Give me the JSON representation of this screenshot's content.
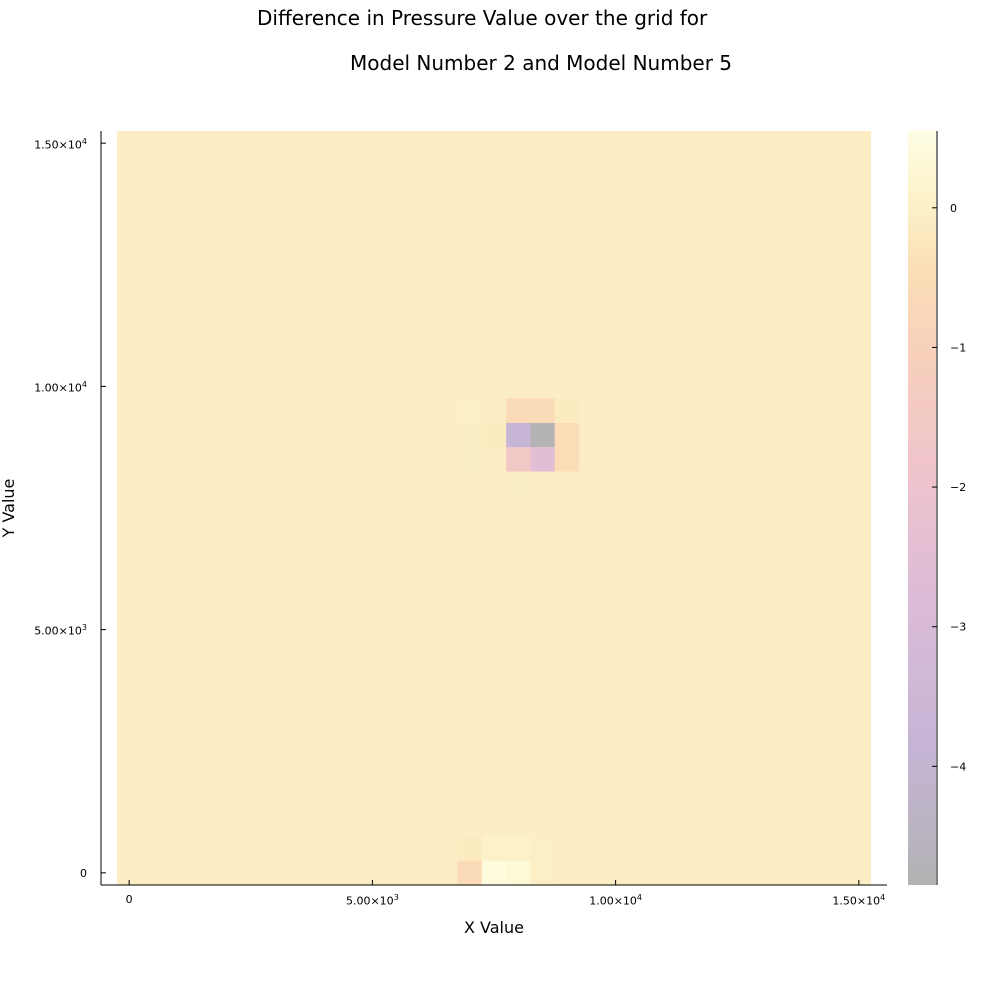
{
  "title_line_1": "Difference in Pressure Value over the grid for",
  "title_line_2": "Model Number 2 and Model Number 5",
  "chart_data": {
    "type": "heatmap",
    "title": "Difference in Pressure Value over the grid for Model Number 2 and Model Number 5",
    "xlabel": "X Value",
    "ylabel": "Y Value",
    "x_ticks": [
      {
        "value": 0,
        "mantissa": "0",
        "exponent": ""
      },
      {
        "value": 5000,
        "mantissa": "5.00×10",
        "exponent": "3"
      },
      {
        "value": 10000,
        "mantissa": "1.00×10",
        "exponent": "4"
      },
      {
        "value": 15000,
        "mantissa": "1.50×10",
        "exponent": "4"
      }
    ],
    "y_ticks": [
      {
        "value": 0,
        "mantissa": "0",
        "exponent": ""
      },
      {
        "value": 5000,
        "mantissa": "5.00×10",
        "exponent": "3"
      },
      {
        "value": 10000,
        "mantissa": "1.00×10",
        "exponent": "4"
      },
      {
        "value": 15000,
        "mantissa": "1.50×10",
        "exponent": "4"
      }
    ],
    "grid": false,
    "cell_size": 500,
    "xlim": [
      -250,
      15250
    ],
    "ylim": [
      -250,
      15250
    ],
    "background_value": -0.07,
    "cells": [
      {
        "x": 7000,
        "y": 0,
        "value": -0.6
      },
      {
        "x": 6500,
        "y": 0,
        "value": -0.1
      },
      {
        "x": 7500,
        "y": 0,
        "value": 0.45
      },
      {
        "x": 8000,
        "y": 0,
        "value": 0.3
      },
      {
        "x": 8500,
        "y": 0,
        "value": -0.03
      },
      {
        "x": 7000,
        "y": 500,
        "value": -0.15
      },
      {
        "x": 7500,
        "y": 500,
        "value": 0.05
      },
      {
        "x": 8000,
        "y": 500,
        "value": 0.02
      },
      {
        "x": 8500,
        "y": 500,
        "value": -0.03
      },
      {
        "x": 8000,
        "y": 8000,
        "value": -0.05
      },
      {
        "x": 8500,
        "y": 8000,
        "value": -0.1
      },
      {
        "x": 7000,
        "y": 8500,
        "value": -0.05
      },
      {
        "x": 7500,
        "y": 8500,
        "value": -0.1
      },
      {
        "x": 8000,
        "y": 8500,
        "value": -1.6
      },
      {
        "x": 8500,
        "y": 8500,
        "value": -2.5
      },
      {
        "x": 9000,
        "y": 8500,
        "value": -0.5
      },
      {
        "x": 7000,
        "y": 9000,
        "value": -0.05
      },
      {
        "x": 7500,
        "y": 9000,
        "value": -0.15
      },
      {
        "x": 8000,
        "y": 9000,
        "value": -3.8
      },
      {
        "x": 8500,
        "y": 9000,
        "value": -4.8
      },
      {
        "x": 9000,
        "y": 9000,
        "value": -0.5
      },
      {
        "x": 7000,
        "y": 9500,
        "value": -0.03
      },
      {
        "x": 7500,
        "y": 9500,
        "value": -0.1
      },
      {
        "x": 8000,
        "y": 9500,
        "value": -0.6
      },
      {
        "x": 8500,
        "y": 9500,
        "value": -0.6
      },
      {
        "x": 9000,
        "y": 9500,
        "value": -0.15
      }
    ],
    "colorbar": {
      "min": -4.85,
      "max": 0.55,
      "ticks": [
        0,
        -1,
        -2,
        -3,
        -4
      ],
      "tick_labels": [
        "0",
        "−1",
        "−2",
        "−3",
        "−4"
      ],
      "colors": [
        {
          "value": -4.85,
          "color": "#b3b3b3"
        },
        {
          "value": -3.9,
          "color": "#c5b4d5"
        },
        {
          "value": -2.9,
          "color": "#dabbd9"
        },
        {
          "value": -1.9,
          "color": "#efc3cc"
        },
        {
          "value": -1.0,
          "color": "#f8d1bb"
        },
        {
          "value": -0.5,
          "color": "#fbdcb6"
        },
        {
          "value": 0.0,
          "color": "#fcf0c6"
        },
        {
          "value": 0.55,
          "color": "#fefee4"
        }
      ]
    }
  }
}
